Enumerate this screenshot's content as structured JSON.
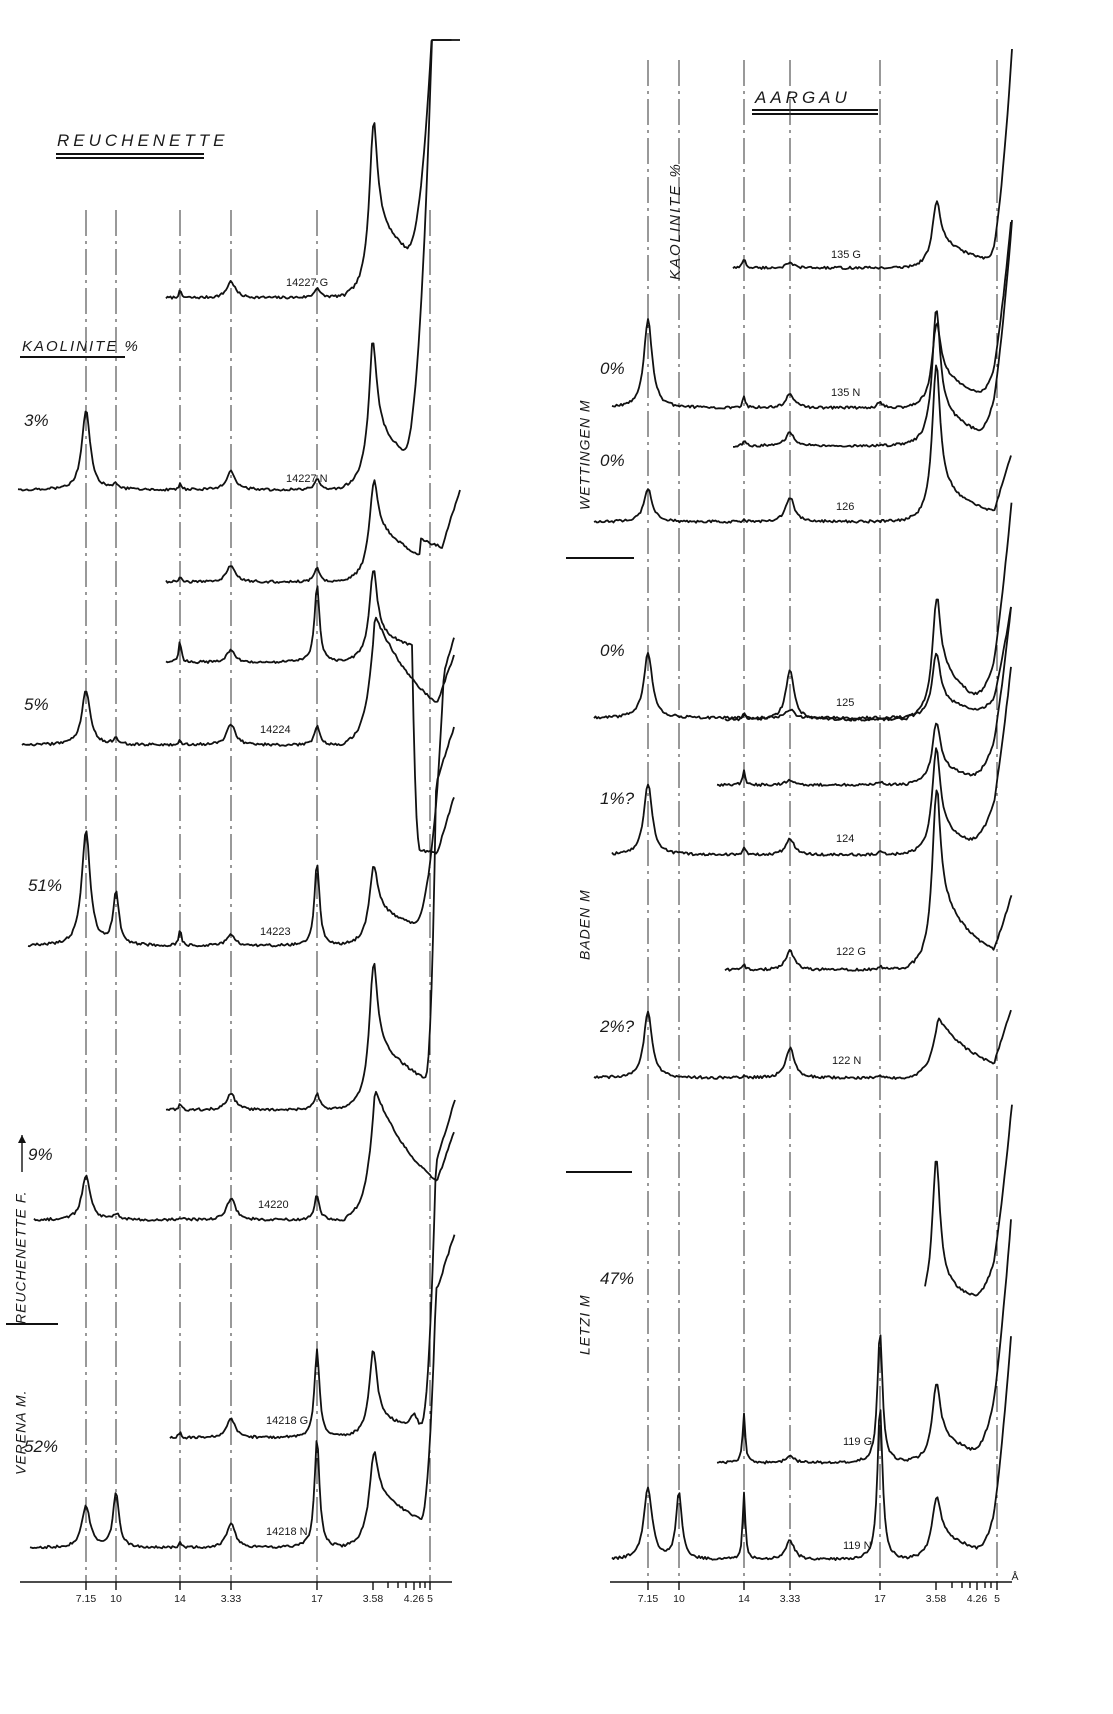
{
  "chart_data": [
    {
      "type": "line",
      "title": "REUCHENETTE",
      "ylabel": "KAOLINITE %",
      "x_unit": "",
      "x_ticks": [
        "3.33",
        "3.58",
        "4.26",
        "5",
        "7.15",
        "10",
        "14",
        "17"
      ],
      "units": [
        {
          "label": "REUCHENETTE F.",
          "arrow": true
        },
        {
          "label": "VERENA M.",
          "arrow": false
        }
      ],
      "series": [
        {
          "name": "14227 G",
          "kaolinite": "",
          "peaks": {
            "4.26": 0.12,
            "5": 0.3,
            "7.15": 0.18,
            "10": 2.0
          }
        },
        {
          "name": "14227 N",
          "kaolinite": "3%",
          "peaks": {
            "3.33": 1.45,
            "3.58": 0.08,
            "4.26": 0.1,
            "5": 0.35,
            "7.15": 0.2,
            "10": 1.45
          }
        },
        {
          "name": "",
          "kaolinite": "",
          "peaks": {
            "4.26": 0.1,
            "5": 0.3,
            "7.15": 0.28,
            "10": 0.9
          }
        },
        {
          "name": "14224",
          "kaolinite": "5%",
          "peaks": {
            "3.33": 1.0,
            "3.58": 0.1,
            "4.26": 0.08,
            "5": 0.38,
            "7.15": 0.35
          }
        },
        {
          "name": "",
          "kaolinite": "",
          "peaks": {
            "4.26": 0.4,
            "5": 0.22,
            "7.15": 1.4,
            "10": 1.25
          }
        },
        {
          "name": "14223",
          "kaolinite": "51%",
          "peaks": {
            "3.33": 2.1,
            "3.58": 0.95,
            "4.26": 0.3,
            "5": 0.2,
            "7.15": 1.5,
            "10": 0.85
          }
        },
        {
          "name": "",
          "kaolinite": "",
          "peaks": {
            "4.26": 0.1,
            "5": 0.3,
            "7.15": 0.3,
            "10": 1.6
          }
        },
        {
          "name": "14220",
          "kaolinite": "9%",
          "peaks": {
            "3.33": 0.8,
            "3.58": 0.1,
            "4.26": 0.05,
            "5": 0.4,
            "7.15": 0.45
          }
        },
        {
          "name": "14218 G",
          "kaolinite": "",
          "peaks": {
            "4.26": 0.1,
            "5": 0.35,
            "7.15": 1.6,
            "10": 1.3,
            "14": 0.22
          }
        },
        {
          "name": "14218 N",
          "kaolinite": "52%",
          "peaks": {
            "3.33": 0.75,
            "3.58": 1.0,
            "4.26": 0.08,
            "5": 0.45,
            "7.15": 2.0,
            "10": 0.8
          }
        }
      ]
    },
    {
      "type": "line",
      "title": "AARGAU",
      "ylabel": "KAOLINITE %",
      "x_unit": "Å",
      "x_ticks": [
        "3.33",
        "3.58",
        "4.26",
        "5",
        "7.15",
        "10",
        "14",
        "17"
      ],
      "units": [
        {
          "label": "WETTINGEN M",
          "arrow": false
        },
        {
          "label": "BADEN M",
          "arrow": false
        },
        {
          "label": "LETZI M",
          "arrow": false
        }
      ],
      "series": [
        {
          "name": "135 G",
          "kaolinite": "",
          "peaks": {
            "4.26": 0.18,
            "5": 0.08,
            "10": 0.75
          }
        },
        {
          "name": "135 N",
          "kaolinite": "0%",
          "peaks": {
            "3.33": 1.6,
            "4.26": 0.2,
            "5": 0.25,
            "7.15": 0.1,
            "10": 0.95
          }
        },
        {
          "name": "",
          "kaolinite": "",
          "peaks": {
            "4.26": 0.1,
            "5": 0.25,
            "10": 1.9
          }
        },
        {
          "name": "126",
          "kaolinite": "0%",
          "peaks": {
            "3.33": 0.6,
            "4.26": 0.05,
            "5": 0.45,
            "10": 2.3
          }
        },
        {
          "name": "",
          "kaolinite": "",
          "peaks": {
            "4.26": 0.1,
            "5": 0.9,
            "10": 1.3
          }
        },
        {
          "name": "125",
          "kaolinite": "0%",
          "peaks": {
            "3.33": 1.2,
            "4.26": 0.05,
            "5": 0.15,
            "10": 0.9
          }
        },
        {
          "name": "",
          "kaolinite": "",
          "peaks": {
            "4.26": 0.25,
            "5": 0.1,
            "7.15": 0.05,
            "10": 0.85
          }
        },
        {
          "name": "124",
          "kaolinite": "1%?",
          "peaks": {
            "3.33": 1.3,
            "4.26": 0.15,
            "5": 0.3,
            "7.15": 0.05,
            "10": 1.5
          }
        },
        {
          "name": "122 G",
          "kaolinite": "",
          "peaks": {
            "4.26": 0.1,
            "5": 0.35,
            "7.15": 0.05,
            "10": 2.1
          }
        },
        {
          "name": "122 N",
          "kaolinite": "2%?",
          "peaks": {
            "3.33": 1.2,
            "4.26": 0.05,
            "5": 0.55,
            "7.15": 0.03
          }
        },
        {
          "name": "",
          "kaolinite": "",
          "peaks": {
            "7.15": 2.6,
            "10": 2.3
          }
        },
        {
          "name": "119 G",
          "kaolinite": "47%",
          "peaks": {
            "4.26": 0.9,
            "5": 0.12,
            "7.15": 2.4,
            "10": 1.0
          }
        },
        {
          "name": "119 N",
          "kaolinite": "",
          "peaks": {
            "3.33": 1.3,
            "3.58": 1.2,
            "4.26": 1.2,
            "5": 0.35,
            "7.15": 2.8,
            "10": 0.7
          }
        }
      ]
    }
  ]
}
